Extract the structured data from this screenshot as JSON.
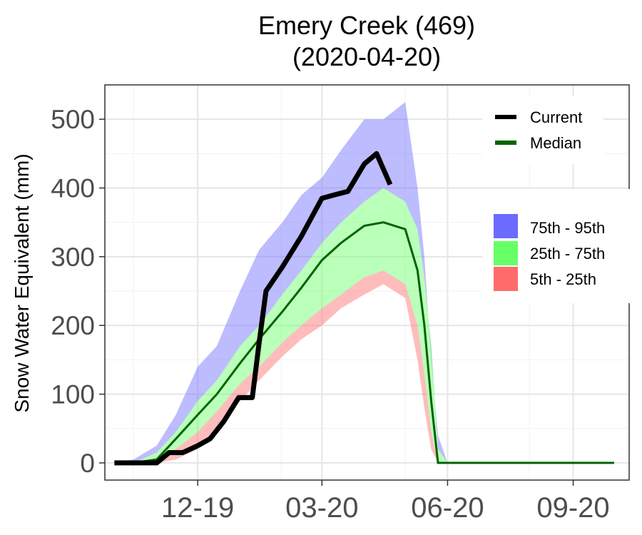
{
  "chart_data": {
    "type": "area",
    "title": "Emery Creek (469)",
    "subtitle": "(2020-04-20)",
    "xlabel": "",
    "ylabel": "Snow Water Equivalent (mm)",
    "x_ticks": [
      "12-19",
      "03-20",
      "06-20",
      "09-20"
    ],
    "y_ticks": [
      "0",
      "100",
      "200",
      "300",
      "400",
      "500"
    ],
    "ylim": [
      -25,
      550
    ],
    "xlim": [
      "2019-09-24",
      "2020-10-12"
    ],
    "grid": true,
    "legend": {
      "lines": [
        {
          "name": "Current",
          "color": "#000000"
        },
        {
          "name": "Median",
          "color": "#006400"
        }
      ],
      "bands": [
        {
          "name": "75th - 95th",
          "color": "#6b6bff"
        },
        {
          "name": "25th - 75th",
          "color": "#66ff66"
        },
        {
          "name": "5th - 25th",
          "color": "#ff6b6b"
        }
      ]
    },
    "x": [
      "2019-10-01",
      "2019-10-15",
      "2019-11-01",
      "2019-11-15",
      "2019-12-01",
      "2019-12-15",
      "2020-01-01",
      "2020-01-15",
      "2020-02-01",
      "2020-02-15",
      "2020-03-01",
      "2020-03-15",
      "2020-04-01",
      "2020-04-15",
      "2020-05-01",
      "2020-05-10",
      "2020-05-15",
      "2020-05-20",
      "2020-05-25",
      "2020-06-01",
      "2020-06-10",
      "2020-07-01",
      "2020-08-01",
      "2020-09-01",
      "2020-10-01"
    ],
    "series": [
      {
        "name": "p95",
        "values": [
          0,
          5,
          25,
          70,
          140,
          170,
          250,
          310,
          350,
          390,
          415,
          455,
          500,
          500,
          525,
          400,
          300,
          150,
          40,
          0,
          0,
          0,
          0,
          0,
          0
        ]
      },
      {
        "name": "p75",
        "values": [
          0,
          0,
          15,
          45,
          90,
          120,
          170,
          200,
          245,
          280,
          320,
          350,
          380,
          400,
          380,
          340,
          270,
          170,
          20,
          0,
          0,
          0,
          0,
          0,
          0
        ]
      },
      {
        "name": "Median",
        "values": [
          0,
          0,
          5,
          35,
          70,
          100,
          145,
          180,
          220,
          255,
          295,
          320,
          345,
          350,
          340,
          280,
          200,
          90,
          0,
          0,
          0,
          0,
          0,
          0,
          0
        ]
      },
      {
        "name": "p25",
        "values": [
          0,
          0,
          0,
          20,
          45,
          75,
          115,
          140,
          175,
          200,
          225,
          245,
          270,
          280,
          260,
          200,
          130,
          45,
          0,
          0,
          0,
          0,
          0,
          0,
          0
        ]
      },
      {
        "name": "p5",
        "values": [
          0,
          0,
          0,
          5,
          20,
          50,
          90,
          120,
          155,
          180,
          200,
          225,
          245,
          260,
          240,
          150,
          80,
          20,
          0,
          0,
          0,
          0,
          0,
          0,
          0
        ]
      }
    ],
    "current": {
      "name": "Current",
      "x": [
        "2019-10-01",
        "2019-10-10",
        "2019-10-20",
        "2019-11-01",
        "2019-11-10",
        "2019-11-20",
        "2019-12-01",
        "2019-12-10",
        "2019-12-20",
        "2019-12-31",
        "2020-01-05",
        "2020-01-10",
        "2020-01-15",
        "2020-01-20",
        "2020-02-01",
        "2020-02-15",
        "2020-03-01",
        "2020-03-10",
        "2020-03-20",
        "2020-04-01",
        "2020-04-10",
        "2020-04-20"
      ],
      "values": [
        0,
        0,
        0,
        0,
        15,
        15,
        25,
        35,
        60,
        95,
        95,
        95,
        175,
        250,
        285,
        330,
        385,
        390,
        395,
        435,
        450,
        405
      ]
    }
  }
}
